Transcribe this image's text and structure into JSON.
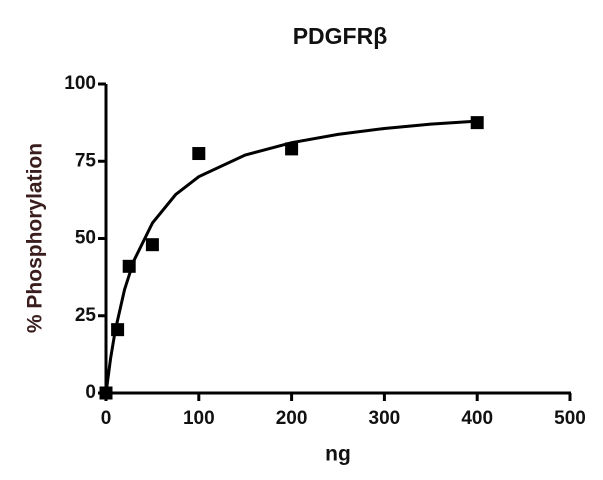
{
  "chart_data": {
    "type": "scatter",
    "title": "PDGFRβ",
    "x_label": "ng",
    "y_label": "% Phosphorylation",
    "xlim": [
      0,
      500
    ],
    "xticks": [
      0,
      100,
      200,
      300,
      400,
      500
    ],
    "ylim": [
      0,
      100
    ],
    "yticks": [
      0,
      25,
      50,
      75,
      100
    ],
    "grid": false,
    "series": [
      {
        "type": "scatter",
        "color": "#000000",
        "x": [
          0,
          12.5,
          25,
          50,
          100,
          200,
          400
        ],
        "values": [
          0,
          20.5,
          41,
          48,
          77.5,
          79,
          87.5
        ]
      },
      {
        "type": "line",
        "color": "#000000",
        "x": [
          0,
          5,
          10,
          20,
          30,
          50,
          75,
          100,
          150,
          200,
          250,
          300,
          350,
          400
        ],
        "values": [
          0,
          11.3,
          20.3,
          33.5,
          42.8,
          55,
          64.2,
          70,
          77,
          81,
          83.7,
          85.6,
          87,
          88
        ]
      }
    ]
  }
}
